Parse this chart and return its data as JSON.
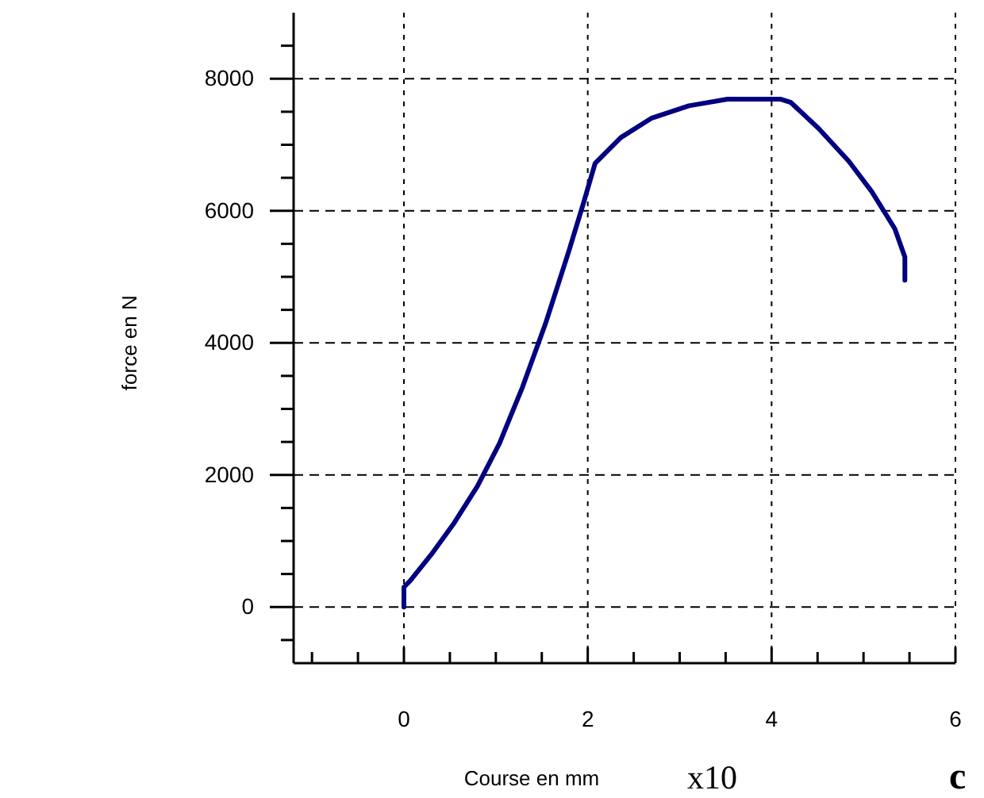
{
  "chart_data": {
    "type": "line",
    "xlabel": "Course en mm",
    "ylabel": "force en N",
    "annotations": [
      "x10",
      "c"
    ],
    "x": [
      0,
      0,
      0.07,
      0.3,
      0.55,
      0.8,
      1.04,
      1.29,
      1.54,
      1.79,
      1.95,
      2.08,
      2.36,
      2.69,
      3.1,
      3.52,
      4.1,
      4.21,
      4.51,
      4.84,
      5.09,
      5.34,
      5.45,
      5.45
    ],
    "series": [
      {
        "color": "#000080",
        "values": [
          0,
          300,
          400,
          800,
          1280,
          1830,
          2480,
          3330,
          4290,
          5370,
          6100,
          6720,
          7110,
          7400,
          7590,
          7690,
          7690,
          7640,
          7250,
          6750,
          6290,
          5730,
          5300,
          4950
        ]
      }
    ],
    "xlim": [
      -1.2,
      6
    ],
    "xticks": [
      {
        "value": -1,
        "label": null
      },
      {
        "value": -0.5,
        "label": null
      },
      0,
      {
        "value": 0.5,
        "label": null
      },
      {
        "value": 1,
        "label": null
      },
      {
        "value": 1.5,
        "label": null
      },
      2,
      {
        "value": 2.5,
        "label": null
      },
      {
        "value": 3,
        "label": null
      },
      {
        "value": 3.5,
        "label": null
      },
      4,
      {
        "value": 4.5,
        "label": null
      },
      {
        "value": 5,
        "label": null
      },
      {
        "value": 5.5,
        "label": null
      },
      6
    ],
    "ylim": [
      -850,
      9000
    ],
    "yticks": [
      {
        "value": -500,
        "label": null
      },
      0,
      {
        "value": 500,
        "label": null
      },
      {
        "value": 1000,
        "label": null
      },
      {
        "value": 1500,
        "label": null
      },
      2000,
      {
        "value": 2500,
        "label": null
      },
      {
        "value": 3000,
        "label": null
      },
      {
        "value": 3500,
        "label": null
      },
      4000,
      {
        "value": 4500,
        "label": null
      },
      {
        "value": 5000,
        "label": null
      },
      {
        "value": 5500,
        "label": null
      },
      6000,
      {
        "value": 6500,
        "label": null
      },
      {
        "value": 7000,
        "label": null
      },
      {
        "value": 7500,
        "label": null
      },
      8000,
      {
        "value": 8500,
        "label": null
      }
    ],
    "grid": true,
    "marker": "none",
    "line_style": "solid"
  }
}
